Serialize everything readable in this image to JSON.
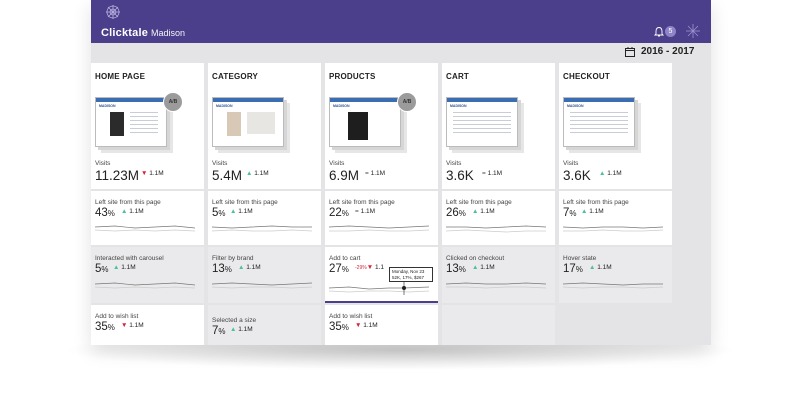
{
  "app": {
    "brand": "Clicktale",
    "account": "Madison",
    "notification_count": "5",
    "date_range": "2016 - 2017",
    "brand_color": "#4b3e8a"
  },
  "columns": [
    {
      "title": "HOME PAGE",
      "ab": "A/B",
      "visits_label": "Visits",
      "visits_value": "11.23M",
      "visits_dir": "down",
      "visits_delta": "1.1M",
      "rows": [
        {
          "label": "Left site from this page",
          "value": "43",
          "dir": "up",
          "delta": "1.1M"
        },
        {
          "label": "Interacted with carousel",
          "value": "5",
          "dir": "up",
          "delta": "1.1M"
        },
        {
          "label": "Add to wish list",
          "value": "35",
          "dir": "down",
          "delta": "1.1M"
        }
      ]
    },
    {
      "title": "CATEGORY",
      "ab": "",
      "visits_label": "Visits",
      "visits_value": "5.4M",
      "visits_dir": "up",
      "visits_delta": "1.1M",
      "rows": [
        {
          "label": "Left site from this page",
          "value": "5",
          "dir": "up",
          "delta": "1.1M"
        },
        {
          "label": "Filter by brand",
          "value": "13",
          "dir": "up",
          "delta": "1.1M"
        },
        {
          "label": "Selected a size",
          "value": "7",
          "dir": "up",
          "delta": "1.1M"
        }
      ]
    },
    {
      "title": "PRODUCTS",
      "ab": "A/B",
      "visits_label": "Visits",
      "visits_value": "6.9M",
      "visits_dir": "eq",
      "visits_delta": "1.1M",
      "rows": [
        {
          "label": "Left site from this page",
          "value": "22",
          "dir": "eq",
          "delta": "1.1M"
        },
        {
          "label": "Add to cart",
          "value": "27",
          "dir": "down",
          "delta": "1.1",
          "extra": "-29%",
          "tooltip": {
            "line1": "Monday, Nov 23",
            "line2": "52K, 17%, $267"
          }
        },
        {
          "label": "Add to wish list",
          "value": "35",
          "dir": "down",
          "delta": "1.1M"
        }
      ]
    },
    {
      "title": "CART",
      "ab": "",
      "visits_label": "Visits",
      "visits_value": "3.6K",
      "visits_dir": "eq",
      "visits_delta": "1.1M",
      "rows": [
        {
          "label": "Left site from this page",
          "value": "26",
          "dir": "up",
          "delta": "1.1M"
        },
        {
          "label": "Clicked on checkout",
          "value": "13",
          "dir": "up",
          "delta": "1.1M"
        }
      ]
    },
    {
      "title": "CHECKOUT",
      "ab": "",
      "visits_label": "Visits",
      "visits_value": "3.6K",
      "visits_dir": "up",
      "visits_delta": "1.1M",
      "rows": [
        {
          "label": "Left site from this page",
          "value": "7",
          "dir": "up",
          "delta": "1.1M"
        },
        {
          "label": "Hover state",
          "value": "17",
          "dir": "up",
          "delta": "1.1M"
        }
      ]
    }
  ]
}
